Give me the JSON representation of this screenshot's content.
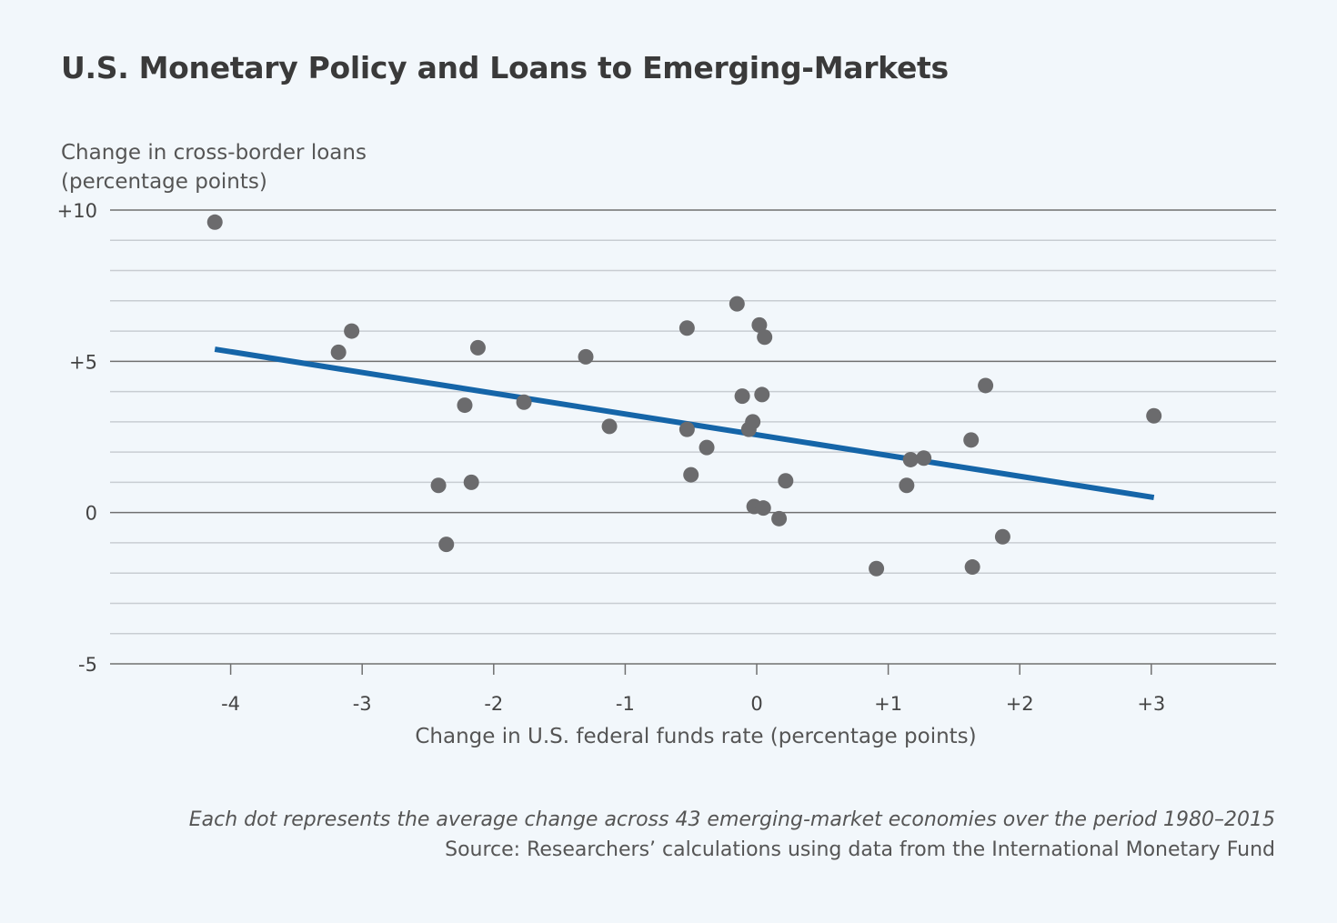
{
  "chart_data": {
    "type": "scatter",
    "title": "U.S. Monetary Policy and Loans to Emerging-Markets",
    "ylabel": [
      "Change in cross-border loans",
      "(percentage points)"
    ],
    "xlabel": "Change in U.S. federal funds rate (percentage points)",
    "xlim": [
      -4.85,
      3.95
    ],
    "ylim": [
      -5,
      10
    ],
    "xticks": [
      {
        "value": -4,
        "label": "-4"
      },
      {
        "value": -3,
        "label": "-3"
      },
      {
        "value": -2,
        "label": "-2"
      },
      {
        "value": -1,
        "label": "-1"
      },
      {
        "value": 0,
        "label": "0"
      },
      {
        "value": 1,
        "label": "+1"
      },
      {
        "value": 2,
        "label": "+2"
      },
      {
        "value": 3,
        "label": "+3"
      }
    ],
    "yticks": [
      {
        "value": 10,
        "label": "+10"
      },
      {
        "value": 5,
        "label": "+5"
      },
      {
        "value": 0,
        "label": "0"
      },
      {
        "value": -5,
        "label": "-5"
      }
    ],
    "minor_gridlines": [
      9,
      8,
      7,
      6,
      4,
      3,
      2,
      1,
      -1,
      -2,
      -3,
      -4
    ],
    "points": [
      {
        "x": -4.12,
        "y": 9.6
      },
      {
        "x": -3.18,
        "y": 5.3
      },
      {
        "x": -3.08,
        "y": 6.0
      },
      {
        "x": -2.42,
        "y": 0.9
      },
      {
        "x": -2.36,
        "y": -1.05
      },
      {
        "x": -2.22,
        "y": 3.55
      },
      {
        "x": -2.17,
        "y": 1.0
      },
      {
        "x": -2.12,
        "y": 5.45
      },
      {
        "x": -1.77,
        "y": 3.65
      },
      {
        "x": -1.3,
        "y": 5.15
      },
      {
        "x": -1.12,
        "y": 2.85
      },
      {
        "x": -0.53,
        "y": 6.1
      },
      {
        "x": -0.53,
        "y": 2.75
      },
      {
        "x": -0.5,
        "y": 1.25
      },
      {
        "x": -0.38,
        "y": 2.15
      },
      {
        "x": -0.15,
        "y": 6.9
      },
      {
        "x": -0.11,
        "y": 3.85
      },
      {
        "x": -0.06,
        "y": 2.75
      },
      {
        "x": -0.03,
        "y": 3.0
      },
      {
        "x": -0.02,
        "y": 0.2
      },
      {
        "x": 0.02,
        "y": 6.2
      },
      {
        "x": 0.04,
        "y": 3.9
      },
      {
        "x": 0.05,
        "y": 0.15
      },
      {
        "x": 0.06,
        "y": 5.8
      },
      {
        "x": 0.17,
        "y": -0.2
      },
      {
        "x": 0.22,
        "y": 1.05
      },
      {
        "x": 0.91,
        "y": -1.85
      },
      {
        "x": 1.14,
        "y": 0.9
      },
      {
        "x": 1.17,
        "y": 1.75
      },
      {
        "x": 1.27,
        "y": 1.8
      },
      {
        "x": 1.63,
        "y": 2.4
      },
      {
        "x": 1.64,
        "y": -1.8
      },
      {
        "x": 1.74,
        "y": 4.2
      },
      {
        "x": 1.87,
        "y": -0.8
      },
      {
        "x": 3.02,
        "y": 3.2
      }
    ],
    "trendline": {
      "x1": -4.12,
      "y1": 5.4,
      "x2": 3.02,
      "y2": 0.5
    },
    "colors": {
      "points": "#6b6b6d",
      "trendline": "#1565a8",
      "major_grid": "#707070",
      "minor_grid": "#c8cdd2"
    }
  },
  "notes": [
    "Each dot represents the average change across 43 emerging-market economies over the period 1980–2015",
    "Source: Researchers’ calculations using data from the International Monetary Fund"
  ]
}
